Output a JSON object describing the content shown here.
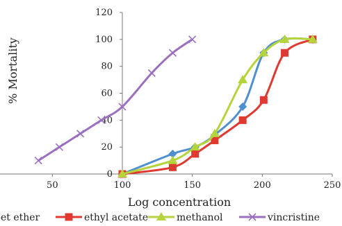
{
  "chart_data": {
    "type": "line",
    "xlabel": "Log concentration",
    "ylabel": "% Mortality",
    "xlim": [
      0,
      250
    ],
    "ylim": [
      0,
      120
    ],
    "x_ticks": [
      "50",
      "100",
      "150",
      "200",
      "250"
    ],
    "y_ticks": [
      "0",
      "20",
      "40",
      "60",
      "80",
      "100",
      "120"
    ],
    "grid": false,
    "legend_position": "bottom",
    "series": [
      {
        "name": "pet ether",
        "legend_label": "pet ether",
        "color": "#4f8fd0",
        "marker": "diamond",
        "x": [
          100,
          136,
          152,
          166,
          186,
          201,
          216,
          236
        ],
        "y": [
          0,
          15,
          20,
          29,
          50,
          90,
          100,
          100
        ]
      },
      {
        "name": "ethyl acetate",
        "legend_label": "ethyl acetate",
        "color": "#e0392f",
        "marker": "square",
        "x": [
          100,
          136,
          152,
          166,
          186,
          201,
          216,
          236
        ],
        "y": [
          0,
          5,
          15,
          25,
          40,
          55,
          90,
          100
        ]
      },
      {
        "name": "methanol",
        "legend_label": "methanol",
        "color": "#b5d33b",
        "marker": "triangle",
        "x": [
          100,
          136,
          152,
          166,
          186,
          201,
          216,
          236
        ],
        "y": [
          0,
          10,
          20,
          30,
          70,
          90,
          100,
          100
        ]
      },
      {
        "name": "vincristine",
        "legend_label": "vincristine",
        "color": "#9b6fc0",
        "marker": "x",
        "x": [
          40,
          55,
          70,
          85,
          100,
          121,
          136,
          150
        ],
        "y": [
          10,
          20,
          30,
          40,
          50,
          75,
          90,
          100
        ]
      }
    ]
  }
}
